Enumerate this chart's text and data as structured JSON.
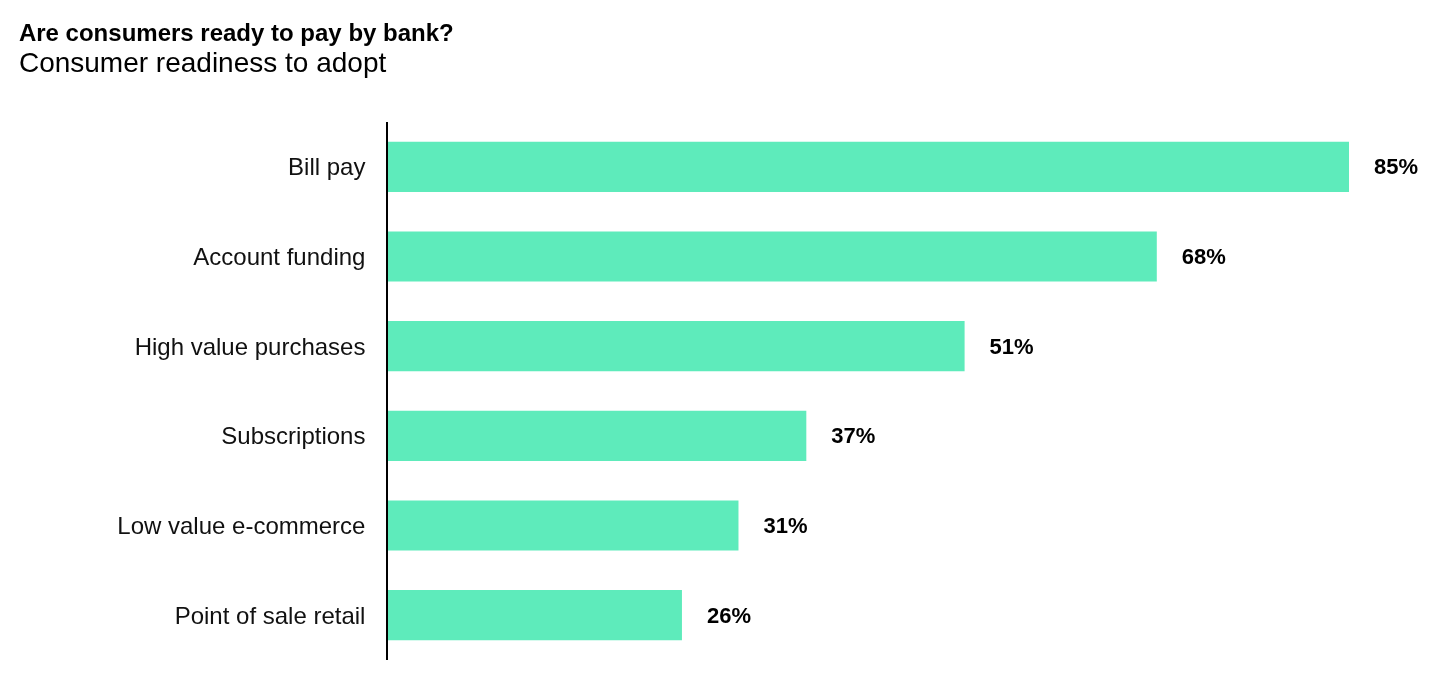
{
  "chart_data": {
    "type": "bar",
    "orientation": "horizontal",
    "title": "Are consumers ready to pay by bank?",
    "subtitle": "Consumer readiness to adopt",
    "categories": [
      "Bill pay",
      "Account funding",
      "High value purchases",
      "Subscriptions",
      "Low value e-commerce",
      "Point of sale retail"
    ],
    "values": [
      85,
      68,
      51,
      37,
      31,
      26
    ],
    "value_labels": [
      "85%",
      "68%",
      "51%",
      "37%",
      "31%",
      "26%"
    ],
    "color": "#5eebbb",
    "grid": false
  }
}
